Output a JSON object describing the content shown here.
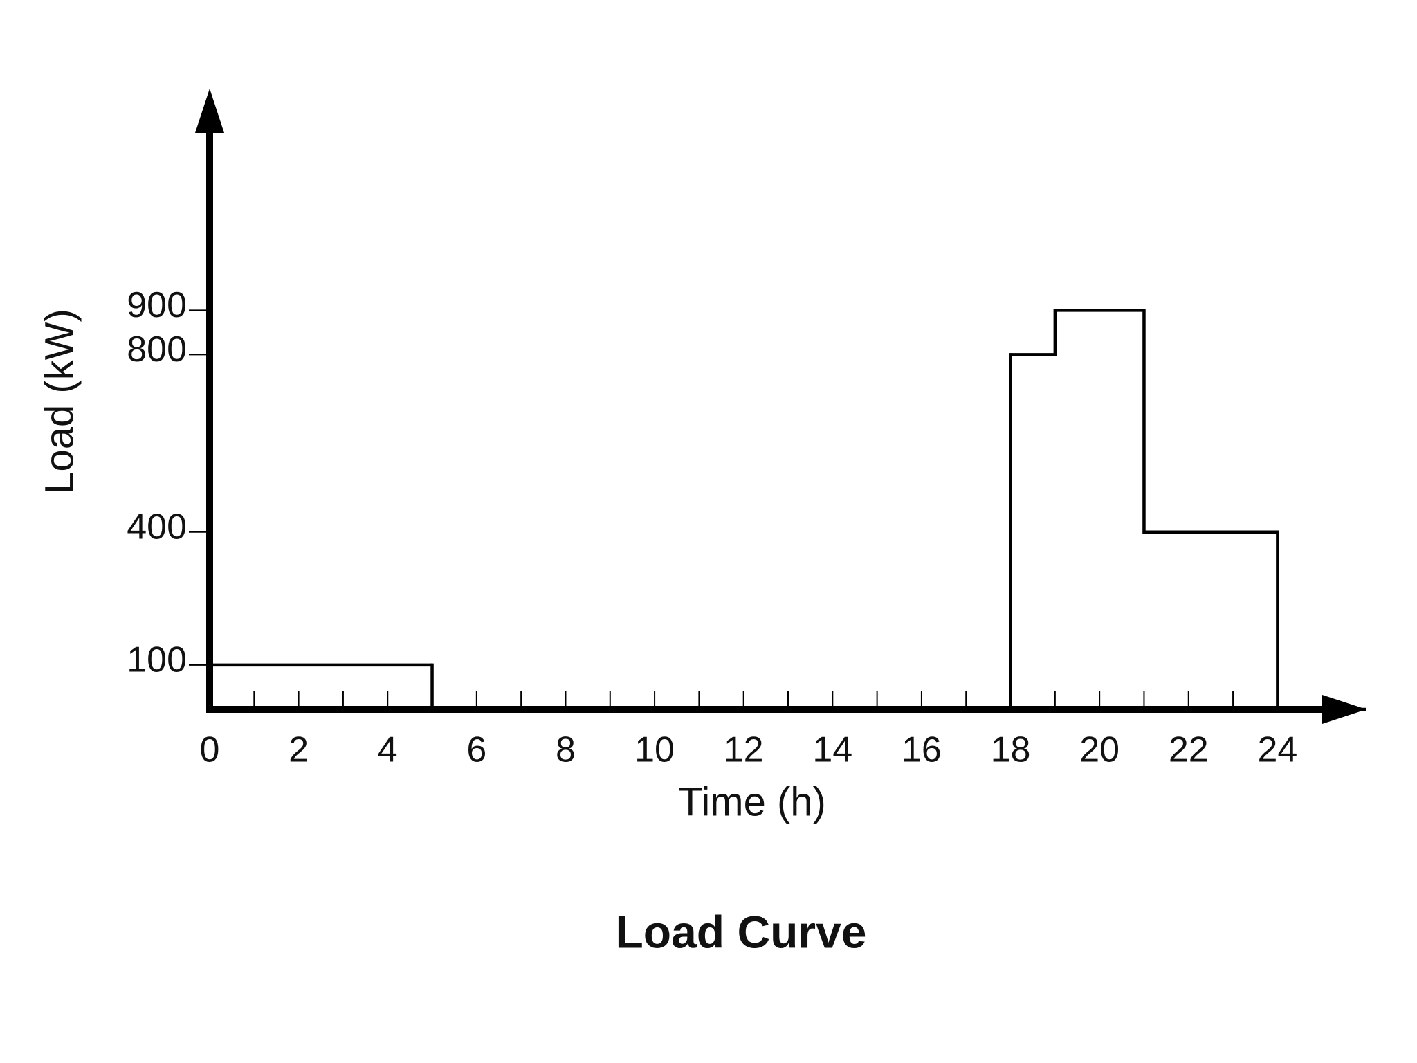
{
  "chart_data": {
    "type": "step",
    "title": "Load Curve",
    "xlabel": "Time (h)",
    "ylabel": "Load (kW)",
    "x": [
      0,
      5,
      18,
      19,
      21,
      24
    ],
    "values": [
      100,
      0,
      800,
      900,
      400,
      0
    ],
    "color": "#000000",
    "xlim": [
      0,
      26
    ],
    "ylim": [
      0,
      1400
    ],
    "xticks": [
      0,
      2,
      4,
      6,
      8,
      10,
      12,
      14,
      16,
      18,
      20,
      22,
      24
    ],
    "xminorticks": [
      1,
      3,
      5,
      7,
      9,
      11,
      13,
      15,
      17,
      19,
      21,
      23
    ],
    "yticks": [
      100,
      400,
      800,
      900
    ],
    "grid": false
  }
}
